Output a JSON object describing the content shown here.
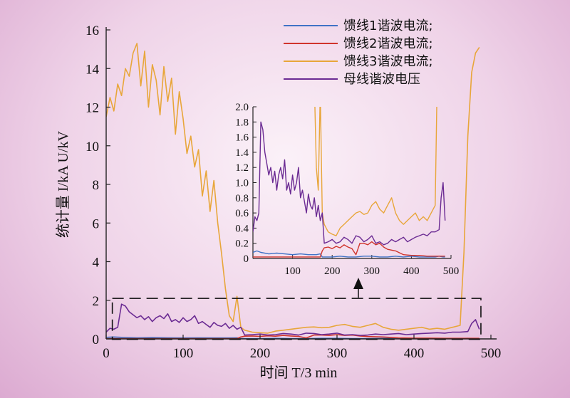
{
  "chart_data": {
    "type": "line",
    "xlabel": "时间 T/3 min",
    "ylabel": "统计量 I/kA U/kV",
    "xlim": [
      0,
      500
    ],
    "ylim": [
      0,
      16
    ],
    "xticks": [
      "0",
      "100",
      "200",
      "300",
      "400",
      "500"
    ],
    "yticks": [
      "0",
      "2",
      "4",
      "6",
      "8",
      "10",
      "12",
      "14",
      "16"
    ],
    "legend_position": "top-right",
    "series": [
      {
        "name": "馈线1谐波电流;",
        "color": "#3f72c6",
        "x": [
          0,
          10,
          20,
          40,
          60,
          80,
          100,
          120,
          140,
          160,
          170,
          175,
          180,
          200,
          220,
          240,
          260,
          280,
          300,
          320,
          340,
          360,
          380,
          400,
          420,
          440,
          460,
          470,
          480,
          485
        ],
        "y": [
          0.08,
          0.1,
          0.08,
          0.06,
          0.07,
          0.06,
          0.05,
          0.06,
          0.05,
          0.05,
          0.06,
          0.02,
          0.02,
          0.02,
          0.03,
          0.02,
          0.02,
          0.03,
          0.03,
          0.02,
          0.02,
          0.03,
          0.02,
          0.03,
          0.02,
          0.02,
          0.02,
          0.03,
          0.02,
          0.02
        ]
      },
      {
        "name": "馈线2谐波电流;",
        "color": "#d0342c",
        "x": [
          0,
          20,
          60,
          100,
          140,
          170,
          175,
          180,
          190,
          200,
          210,
          220,
          230,
          240,
          250,
          260,
          270,
          280,
          290,
          300,
          310,
          320,
          330,
          340,
          360,
          380,
          400,
          420,
          440,
          460,
          470,
          480,
          485
        ],
        "y": [
          0.02,
          0.02,
          0.02,
          0.02,
          0.02,
          0.02,
          0.1,
          0.14,
          0.15,
          0.13,
          0.16,
          0.14,
          0.18,
          0.15,
          0.13,
          0.05,
          0.2,
          0.2,
          0.18,
          0.22,
          0.18,
          0.2,
          0.15,
          0.12,
          0.1,
          0.05,
          0.04,
          0.04,
          0.03,
          0.03,
          0.03,
          0.03,
          0.03
        ]
      },
      {
        "name": "馈线3谐波电流;",
        "color": "#e8a63a",
        "x": [
          0,
          5,
          10,
          15,
          20,
          25,
          30,
          35,
          40,
          45,
          50,
          55,
          60,
          65,
          70,
          75,
          80,
          85,
          90,
          95,
          100,
          105,
          110,
          115,
          120,
          125,
          130,
          135,
          140,
          145,
          150,
          155,
          160,
          165,
          170,
          175,
          180,
          185,
          190,
          200,
          210,
          220,
          230,
          240,
          250,
          260,
          270,
          280,
          290,
          300,
          310,
          320,
          330,
          340,
          350,
          360,
          370,
          380,
          390,
          400,
          410,
          420,
          430,
          440,
          450,
          460,
          465,
          470,
          475,
          480,
          485
        ],
        "y": [
          11.5,
          12.5,
          11.8,
          13.2,
          12.6,
          14.0,
          13.6,
          14.8,
          15.3,
          13.1,
          14.9,
          12.0,
          14.2,
          13.4,
          11.6,
          14.1,
          12.3,
          13.5,
          10.6,
          12.8,
          11.4,
          9.6,
          10.5,
          8.9,
          9.8,
          7.4,
          8.7,
          6.6,
          8.2,
          6.0,
          4.4,
          2.6,
          1.2,
          0.9,
          2.2,
          0.6,
          0.45,
          0.4,
          0.35,
          0.32,
          0.3,
          0.4,
          0.45,
          0.5,
          0.55,
          0.6,
          0.62,
          0.58,
          0.6,
          0.7,
          0.75,
          0.65,
          0.6,
          0.7,
          0.8,
          0.6,
          0.5,
          0.45,
          0.5,
          0.55,
          0.6,
          0.5,
          0.55,
          0.5,
          0.6,
          0.7,
          4.5,
          10.5,
          13.8,
          14.8,
          15.1
        ]
      },
      {
        "name": "母线谐波电压",
        "color": "#6b2b93",
        "x": [
          0,
          5,
          10,
          15,
          20,
          25,
          30,
          35,
          40,
          45,
          50,
          55,
          60,
          65,
          70,
          75,
          80,
          85,
          90,
          95,
          100,
          105,
          110,
          115,
          120,
          125,
          130,
          135,
          140,
          145,
          150,
          155,
          160,
          165,
          170,
          175,
          180,
          190,
          200,
          210,
          220,
          230,
          240,
          250,
          260,
          270,
          280,
          290,
          300,
          310,
          320,
          330,
          340,
          350,
          360,
          370,
          380,
          390,
          400,
          410,
          420,
          430,
          440,
          450,
          460,
          470,
          475,
          480,
          485
        ],
        "y": [
          0.35,
          0.55,
          0.5,
          0.6,
          1.8,
          1.7,
          1.4,
          1.25,
          1.1,
          1.2,
          1.0,
          1.15,
          0.9,
          1.1,
          1.2,
          1.05,
          1.3,
          0.9,
          1.0,
          0.85,
          1.1,
          0.9,
          1.0,
          1.2,
          0.8,
          0.9,
          0.75,
          0.6,
          0.85,
          0.7,
          0.65,
          0.8,
          0.55,
          0.7,
          0.5,
          0.6,
          0.2,
          0.22,
          0.25,
          0.2,
          0.22,
          0.28,
          0.25,
          0.2,
          0.3,
          0.28,
          0.22,
          0.25,
          0.3,
          0.2,
          0.22,
          0.18,
          0.2,
          0.25,
          0.22,
          0.25,
          0.28,
          0.22,
          0.25,
          0.28,
          0.3,
          0.32,
          0.3,
          0.35,
          0.35,
          0.38,
          0.8,
          1.0,
          0.5
        ]
      }
    ],
    "inset": {
      "xlim": [
        0,
        500
      ],
      "ylim": [
        0,
        2.0
      ],
      "xticks": [
        "100",
        "200",
        "300",
        "400",
        "500"
      ],
      "yticks": [
        "0",
        "0.2",
        "0.4",
        "0.6",
        "0.8",
        "1.0",
        "1.2",
        "1.4",
        "1.6",
        "1.8",
        "2.0"
      ]
    }
  }
}
